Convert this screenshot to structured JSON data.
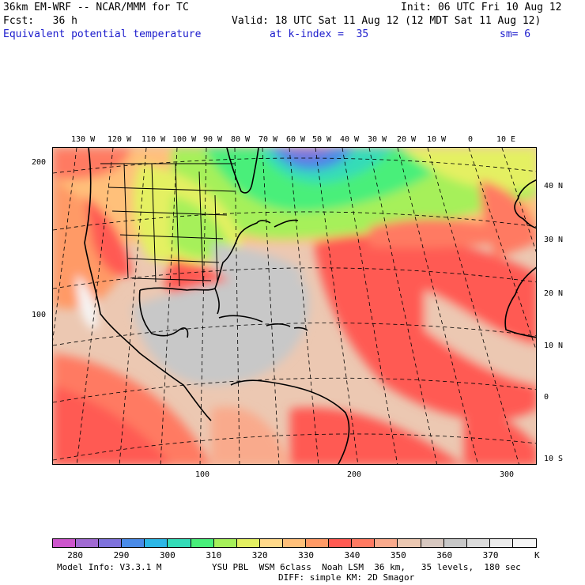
{
  "header": {
    "model_title": "36km EM-WRF -- NCAR/MMM for TC",
    "init": "Init: 06 UTC Fri 10 Aug 12",
    "fcst": "Fcst:   36 h",
    "valid": "Valid: 18 UTC Sat 11 Aug 12 (12 MDT Sat 11 Aug 12)",
    "field": "Equivalent potential temperature",
    "kindex": "at k-index =  35",
    "smooth": "sm= 6"
  },
  "map": {
    "top_longitudes": [
      "130 W",
      "120 W",
      "110 W",
      "100 W",
      "90 W",
      "80 W",
      "70 W",
      "60 W",
      "50 W",
      "40 W",
      "30 W",
      "20 W",
      "10 W",
      "0",
      "10 E"
    ],
    "right_latitudes": [
      "40 N",
      "30 N",
      "20 N",
      "10 N",
      "0",
      "10 S"
    ],
    "left_grid": [
      "200",
      "100"
    ],
    "bottom_grid": [
      "100",
      "200",
      "300"
    ]
  },
  "colorbar": {
    "colors": [
      "#cc55cc",
      "#a06ad2",
      "#7e72dc",
      "#4a8be8",
      "#2cb7e6",
      "#34dcb8",
      "#48ef7a",
      "#a6f05a",
      "#e4f062",
      "#ffd98a",
      "#ffc07a",
      "#ff9a66",
      "#ff5a52",
      "#ff7a62",
      "#f9aa8c",
      "#ecc8b2",
      "#d8c8c0",
      "#c8c8c8",
      "#dcdcdc",
      "#ececec",
      "#f6f6f6"
    ],
    "labels": [
      "280",
      "290",
      "300",
      "310",
      "320",
      "330",
      "340",
      "350",
      "360",
      "370"
    ],
    "unit": "K"
  },
  "footer": {
    "model_info": "Model Info: V3.3.1 M",
    "physics_1": "YSU PBL  WSM 6class  Noah LSM  36 km,   35 levels,  180 sec",
    "physics_2": "DIFF: simple KM: 2D Smagor"
  }
}
